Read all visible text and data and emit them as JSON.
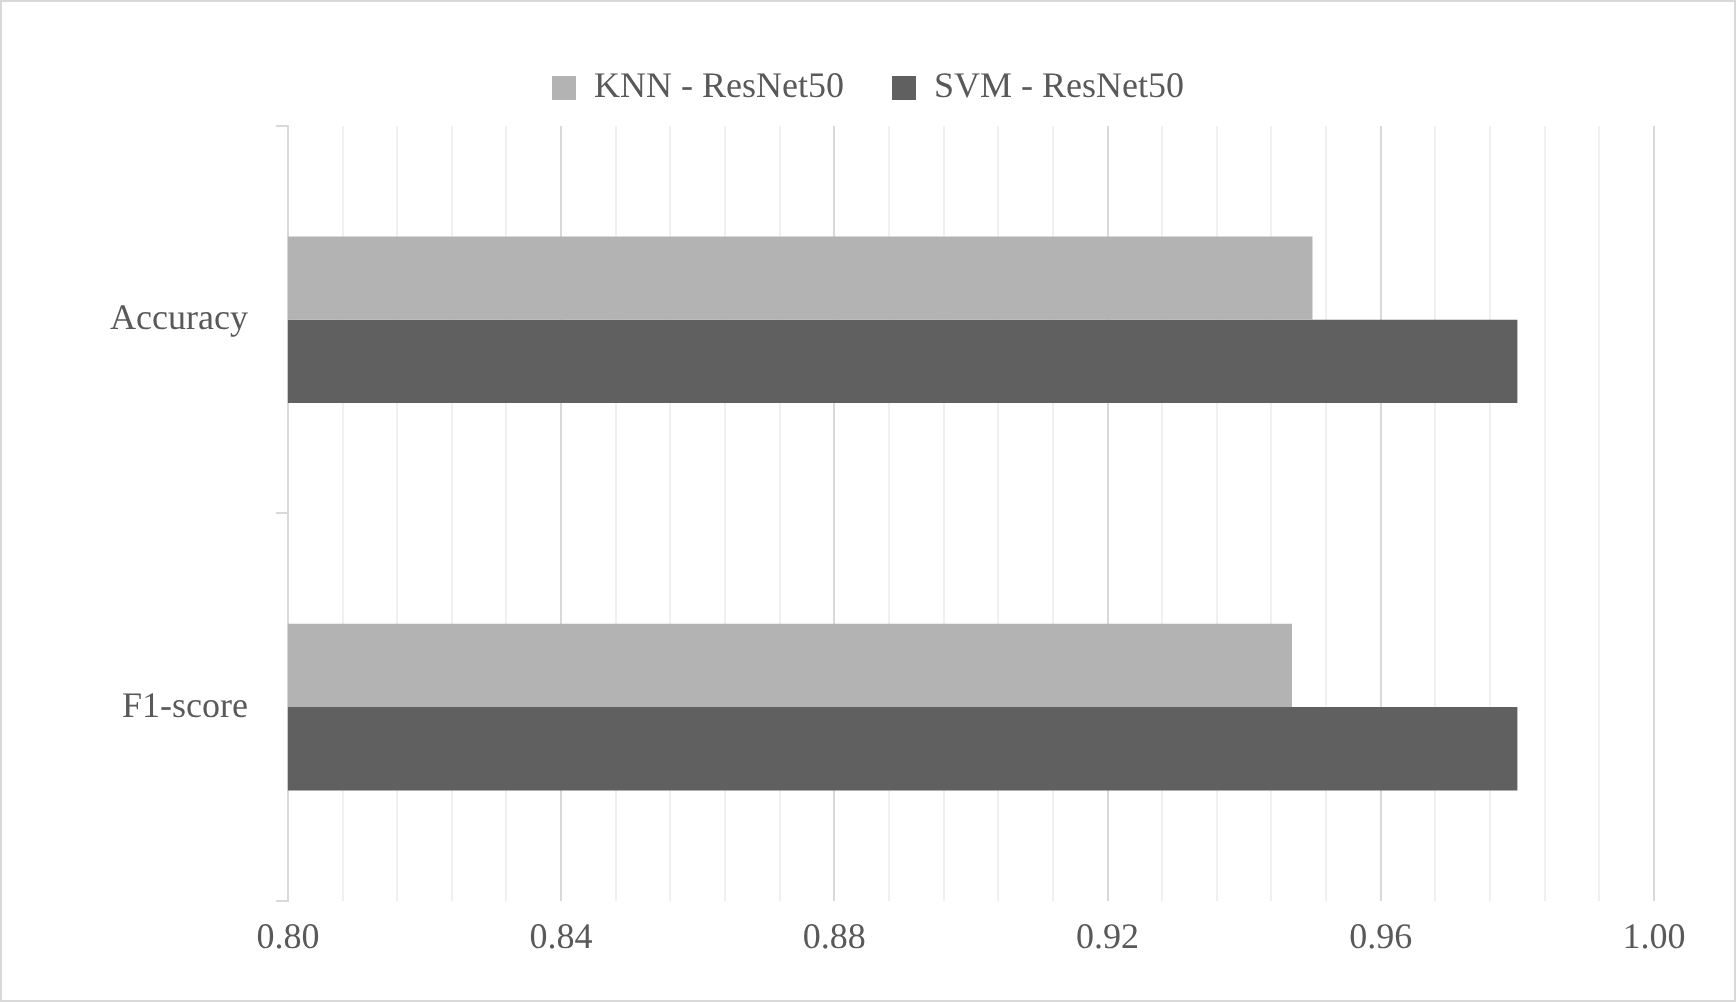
{
  "chart_data": {
    "type": "bar",
    "orientation": "horizontal",
    "categories": [
      "Accuracy",
      "F1-score"
    ],
    "series": [
      {
        "name": "KNN - ResNet50",
        "color": "#b3b3b3",
        "values": [
          0.95,
          0.947
        ]
      },
      {
        "name": "SVM - ResNet50",
        "color": "#606060",
        "values": [
          0.98,
          0.98
        ]
      }
    ],
    "xlim": [
      0.8,
      1.0
    ],
    "xticks": [
      {
        "value": 0.8,
        "label": "0.80"
      },
      {
        "value": 0.808,
        "label": null
      },
      {
        "value": 0.816,
        "label": null
      },
      {
        "value": 0.824,
        "label": null
      },
      {
        "value": 0.832,
        "label": null
      },
      {
        "value": 0.84,
        "label": "0.84"
      },
      {
        "value": 0.848,
        "label": null
      },
      {
        "value": 0.856,
        "label": null
      },
      {
        "value": 0.864,
        "label": null
      },
      {
        "value": 0.872,
        "label": null
      },
      {
        "value": 0.88,
        "label": "0.88"
      },
      {
        "value": 0.888,
        "label": null
      },
      {
        "value": 0.896,
        "label": null
      },
      {
        "value": 0.904,
        "label": null
      },
      {
        "value": 0.912,
        "label": null
      },
      {
        "value": 0.92,
        "label": "0.92"
      },
      {
        "value": 0.928,
        "label": null
      },
      {
        "value": 0.936,
        "label": null
      },
      {
        "value": 0.944,
        "label": null
      },
      {
        "value": 0.952,
        "label": null
      },
      {
        "value": 0.96,
        "label": "0.96"
      },
      {
        "value": 0.968,
        "label": null
      },
      {
        "value": 0.976,
        "label": null
      },
      {
        "value": 0.984,
        "label": null
      },
      {
        "value": 0.992,
        "label": null
      },
      {
        "value": 1.0,
        "label": "1.00"
      }
    ],
    "grid": "x",
    "legend": "top"
  }
}
